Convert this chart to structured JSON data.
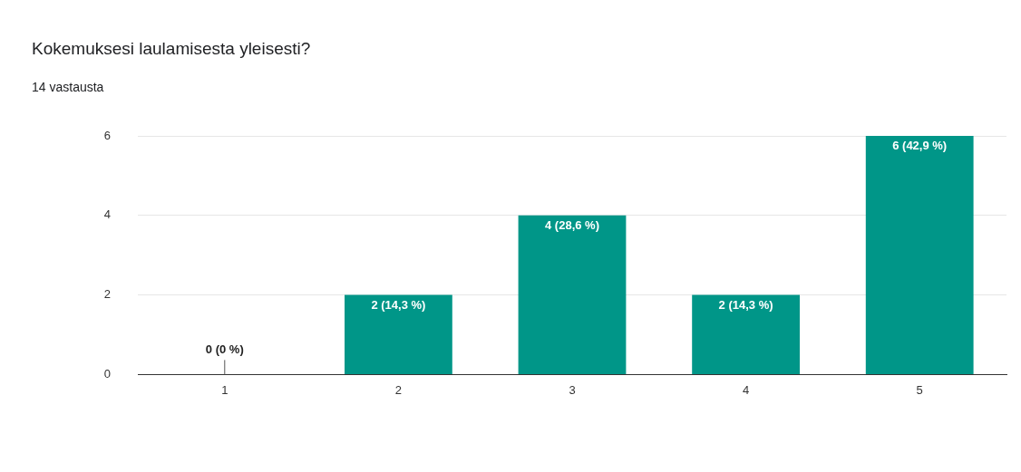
{
  "chart_data": {
    "type": "bar",
    "title": "Kokemuksesi laulamisesta yleisesti?",
    "subtitle": "14 vastausta",
    "categories": [
      "1",
      "2",
      "3",
      "4",
      "5"
    ],
    "values": [
      0,
      2,
      4,
      2,
      6
    ],
    "value_labels": [
      "0 (0 %)",
      "2 (14,3 %)",
      "4 (28,6 %)",
      "2 (14,3 %)",
      "6 (42,9 %)"
    ],
    "color": "#009688",
    "ylim": [
      0,
      6
    ],
    "yticks": [
      0,
      2,
      4,
      6
    ],
    "grid": "y",
    "legend": false
  }
}
